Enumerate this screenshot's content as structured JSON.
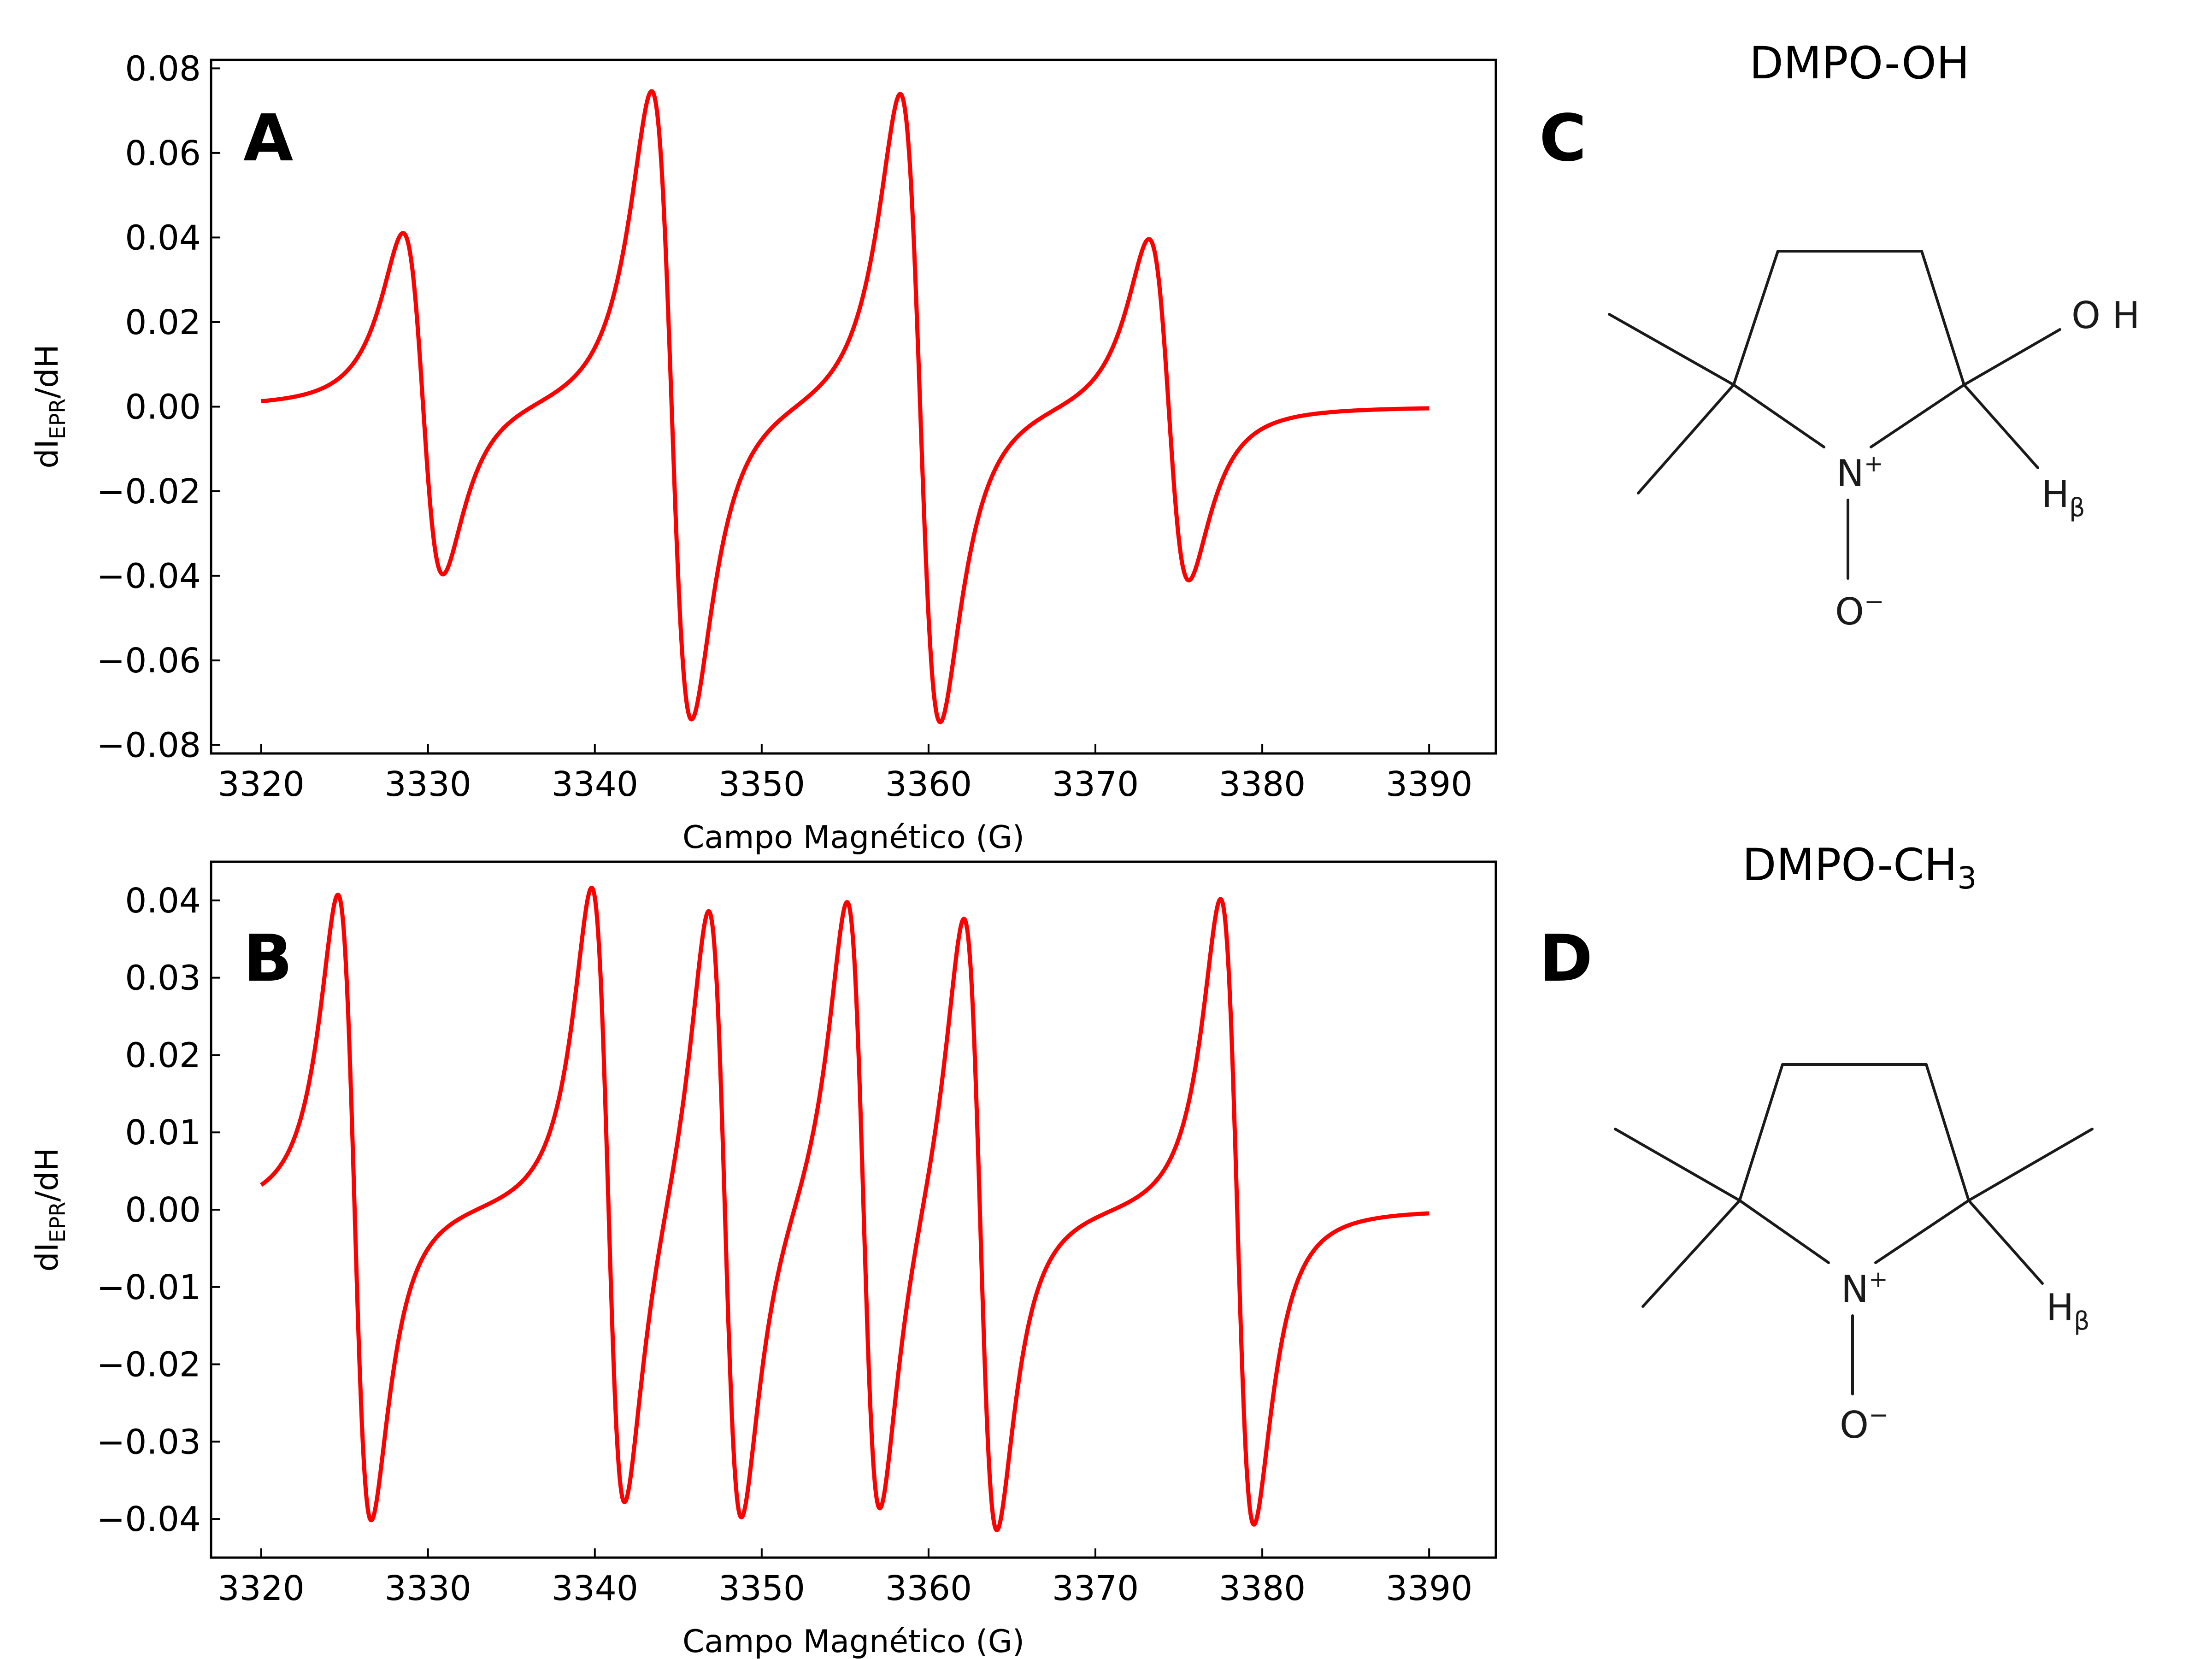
{
  "chart_data": [
    {
      "type": "line",
      "panel_label": "A",
      "xlabel": "Campo Magnético (G)",
      "ylabel": "dI_EPR/dH",
      "ylabel_parts": {
        "main": "dI",
        "sub": "EPR",
        "tail": "/dH"
      },
      "xlim": [
        3317,
        3394
      ],
      "ylim": [
        -0.082,
        0.082
      ],
      "xticks": [
        3320,
        3330,
        3340,
        3350,
        3360,
        3370,
        3380,
        3390
      ],
      "yticks": [
        -0.08,
        -0.06,
        -0.04,
        -0.02,
        0.0,
        0.02,
        0.04,
        0.06,
        0.08
      ],
      "ytick_labels": [
        "−0.08",
        "−0.06",
        "−0.04",
        "−0.02",
        "0.00",
        "0.02",
        "0.04",
        "0.06",
        "0.08"
      ],
      "x_range": [
        3320,
        3390
      ],
      "grid": false,
      "series": [
        {
          "color": "#ff0000",
          "lines": [
            {
              "center": 3329.7,
              "peak": 0.0405
            },
            {
              "center": 3344.6,
              "peak": 0.0745
            },
            {
              "center": 3359.5,
              "peak": 0.0745
            },
            {
              "center": 3374.4,
              "peak": 0.0405
            }
          ],
          "linewidth_G": 1.2
        }
      ]
    },
    {
      "type": "line",
      "panel_label": "B",
      "xlabel": "Campo Magnético (G)",
      "ylabel": "dI_EPR/dH",
      "ylabel_parts": {
        "main": "dI",
        "sub": "EPR",
        "tail": "/dH"
      },
      "xlim": [
        3317,
        3394
      ],
      "ylim": [
        -0.045,
        0.045
      ],
      "xticks": [
        3320,
        3330,
        3340,
        3350,
        3360,
        3370,
        3380,
        3390
      ],
      "yticks": [
        -0.04,
        -0.03,
        -0.02,
        -0.01,
        0.0,
        0.01,
        0.02,
        0.03,
        0.04
      ],
      "ytick_labels": [
        "−0.04",
        "−0.03",
        "−0.02",
        "−0.01",
        "0.00",
        "0.01",
        "0.02",
        "0.03",
        "0.04"
      ],
      "x_range": [
        3320,
        3390
      ],
      "grid": false,
      "series": [
        {
          "color": "#ff0000",
          "lines": [
            {
              "center": 3325.6,
              "peak": 0.0405
            },
            {
              "center": 3340.8,
              "peak": 0.0405
            },
            {
              "center": 3347.8,
              "peak": 0.0403
            },
            {
              "center": 3356.1,
              "peak": 0.0403
            },
            {
              "center": 3363.1,
              "peak": 0.0403
            },
            {
              "center": 3378.5,
              "peak": 0.0405
            }
          ],
          "linewidth_G": 1.0
        }
      ]
    }
  ],
  "molecules": [
    {
      "panel_label": "C",
      "title": "DMPO-OH",
      "atoms": {
        "n": "N",
        "n_charge": "+",
        "o": "O",
        "o_charge": "−",
        "oh": "O H",
        "h": "H",
        "h_sub": "β"
      }
    },
    {
      "panel_label": "D",
      "title_main": "DMPO-CH",
      "title_sub": "3",
      "atoms": {
        "n": "N",
        "n_charge": "+",
        "o": "O",
        "o_charge": "−",
        "h": "H",
        "h_sub": "β"
      }
    }
  ]
}
